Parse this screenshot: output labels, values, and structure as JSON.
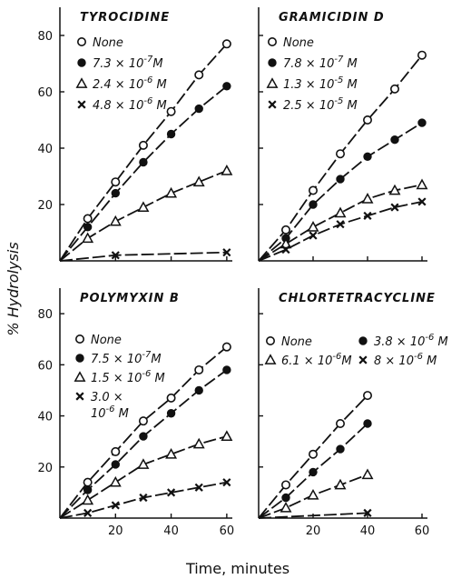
{
  "figure": {
    "ylabel": "% Hydrolysis",
    "xlabel": "Time, minutes"
  },
  "chart_data": [
    {
      "type": "line",
      "title": "TYROCIDINE",
      "xlim": [
        0,
        62
      ],
      "ylim": [
        0,
        90
      ],
      "yticks": [
        20,
        40,
        60,
        80
      ],
      "ytick_labels": [
        "20",
        "40",
        "60",
        "80"
      ],
      "xticks": [
        20,
        40,
        60
      ],
      "xtick_labels": [],
      "legend": "top-left",
      "series": [
        {
          "name": "None",
          "marker": "open-circle",
          "x": [
            0,
            10,
            20,
            30,
            40,
            50,
            60
          ],
          "y": [
            0,
            15,
            28,
            41,
            53,
            66,
            77
          ]
        },
        {
          "name": "7.3 × 10⁻⁷M",
          "marker": "filled-circle",
          "x": [
            0,
            10,
            20,
            30,
            40,
            50,
            60
          ],
          "y": [
            0,
            12,
            24,
            35,
            45,
            54,
            62
          ]
        },
        {
          "name": "2.4 × 10⁻⁶ M",
          "marker": "triangle",
          "x": [
            0,
            10,
            20,
            30,
            40,
            50,
            60
          ],
          "y": [
            0,
            8,
            14,
            19,
            24,
            28,
            32
          ]
        },
        {
          "name": "4.8 × 10⁻⁶ M",
          "marker": "cross",
          "x": [
            0,
            20,
            60
          ],
          "y": [
            0,
            2,
            3
          ]
        }
      ]
    },
    {
      "type": "line",
      "title": "GRAMICIDIN D",
      "xlim": [
        0,
        62
      ],
      "ylim": [
        0,
        90
      ],
      "yticks": [
        20,
        40,
        60,
        80
      ],
      "ytick_labels": [],
      "xticks": [
        20,
        40,
        60
      ],
      "xtick_labels": [],
      "legend": "top-left",
      "series": [
        {
          "name": "None",
          "marker": "open-circle",
          "x": [
            0,
            10,
            20,
            30,
            40,
            50,
            60
          ],
          "y": [
            0,
            11,
            25,
            38,
            50,
            61,
            73
          ]
        },
        {
          "name": "7.8 × 10⁻⁷ M",
          "marker": "filled-circle",
          "x": [
            0,
            10,
            20,
            30,
            40,
            50,
            60
          ],
          "y": [
            0,
            8,
            20,
            29,
            37,
            43,
            49
          ]
        },
        {
          "name": "1.3 × 10⁻⁵ M",
          "marker": "triangle",
          "x": [
            0,
            10,
            20,
            30,
            40,
            50,
            60
          ],
          "y": [
            0,
            6,
            12,
            17,
            22,
            25,
            27
          ]
        },
        {
          "name": "2.5 × 10⁻⁵ M",
          "marker": "cross",
          "x": [
            0,
            10,
            20,
            30,
            40,
            50,
            60
          ],
          "y": [
            0,
            4,
            9,
            13,
            16,
            19,
            21
          ]
        }
      ]
    },
    {
      "type": "line",
      "title": "POLYMYXIN B",
      "xlim": [
        0,
        62
      ],
      "ylim": [
        0,
        90
      ],
      "yticks": [
        20,
        40,
        60,
        80
      ],
      "ytick_labels": [
        "20",
        "40",
        "60",
        "80"
      ],
      "xticks": [
        20,
        40,
        60
      ],
      "xtick_labels": [
        "20",
        "40",
        "60"
      ],
      "legend": "top-left",
      "series": [
        {
          "name": "None",
          "marker": "open-circle",
          "x": [
            0,
            10,
            20,
            30,
            40,
            50,
            60
          ],
          "y": [
            0,
            14,
            26,
            38,
            47,
            58,
            67
          ]
        },
        {
          "name": "7.5 × 10⁻⁷M",
          "marker": "filled-circle",
          "x": [
            0,
            10,
            20,
            30,
            40,
            50,
            60
          ],
          "y": [
            0,
            11,
            21,
            32,
            41,
            50,
            58
          ]
        },
        {
          "name": "1.5 × 10⁻⁶ M",
          "marker": "triangle",
          "x": [
            0,
            10,
            20,
            30,
            40,
            50,
            60
          ],
          "y": [
            0,
            7,
            14,
            21,
            25,
            29,
            32
          ]
        },
        {
          "name": "3.0 × 10⁻⁶ M",
          "marker": "cross",
          "x": [
            0,
            10,
            20,
            30,
            40,
            50,
            60
          ],
          "y": [
            0,
            2,
            5,
            8,
            10,
            12,
            14
          ]
        }
      ]
    },
    {
      "type": "line",
      "title": "CHLORTETRACYCLINE",
      "xlim": [
        0,
        62
      ],
      "ylim": [
        0,
        90
      ],
      "yticks": [
        20,
        40,
        60,
        80
      ],
      "ytick_labels": [],
      "xticks": [
        20,
        40,
        60
      ],
      "xtick_labels": [
        "20",
        "40",
        "60"
      ],
      "legend": "top",
      "series": [
        {
          "name": "None",
          "marker": "open-circle",
          "x": [
            0,
            10,
            20,
            30,
            40
          ],
          "y": [
            0,
            13,
            25,
            37,
            48
          ]
        },
        {
          "name": "3.8 × 10⁻⁶ M",
          "marker": "filled-circle",
          "x": [
            0,
            10,
            20,
            30,
            40
          ],
          "y": [
            0,
            8,
            18,
            27,
            37
          ]
        },
        {
          "name": "6.1 × 10⁻⁶M",
          "marker": "triangle",
          "x": [
            0,
            10,
            20,
            30,
            40
          ],
          "y": [
            0,
            4,
            9,
            13,
            17
          ]
        },
        {
          "name": "8 × 10⁻⁶ M",
          "marker": "cross",
          "x": [
            0,
            40
          ],
          "y": [
            0,
            2
          ]
        }
      ]
    }
  ]
}
